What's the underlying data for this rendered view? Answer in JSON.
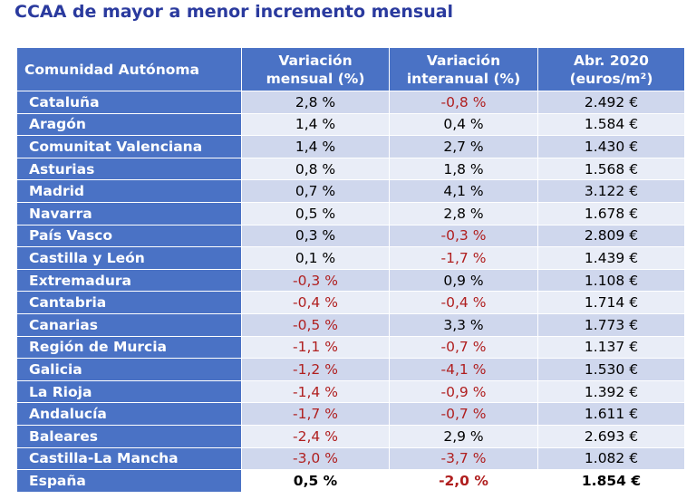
{
  "title": "CCAA de mayor a menor incremento mensual",
  "table": {
    "headers": {
      "region": "Comunidad Autónoma",
      "mensual_line1": "Variación",
      "mensual_line2": "mensual (%)",
      "interanual_line1": "Variación",
      "interanual_line2": "interanual (%)",
      "precio_line1": "Abr. 2020",
      "precio_line2": "(euros/m²)"
    },
    "rows": [
      {
        "region": "Cataluña",
        "mensual": "2,8 %",
        "interanual": "-0,8 %",
        "precio": "2.492 €"
      },
      {
        "region": "Aragón",
        "mensual": "1,4 %",
        "interanual": "0,4 %",
        "precio": "1.584 €"
      },
      {
        "region": "Comunitat Valenciana",
        "mensual": "1,4 %",
        "interanual": "2,7 %",
        "precio": "1.430 €"
      },
      {
        "region": "Asturias",
        "mensual": "0,8 %",
        "interanual": "1,8 %",
        "precio": "1.568 €"
      },
      {
        "region": "Madrid",
        "mensual": "0,7 %",
        "interanual": "4,1 %",
        "precio": "3.122 €"
      },
      {
        "region": "Navarra",
        "mensual": "0,5 %",
        "interanual": "2,8 %",
        "precio": "1.678 €"
      },
      {
        "region": "País Vasco",
        "mensual": "0,3 %",
        "interanual": "-0,3 %",
        "precio": "2.809 €"
      },
      {
        "region": "Castilla y León",
        "mensual": "0,1 %",
        "interanual": "-1,7 %",
        "precio": "1.439 €"
      },
      {
        "region": "Extremadura",
        "mensual": "-0,3 %",
        "interanual": "0,9 %",
        "precio": "1.108 €"
      },
      {
        "region": "Cantabria",
        "mensual": "-0,4 %",
        "interanual": "-0,4 %",
        "precio": "1.714 €"
      },
      {
        "region": "Canarias",
        "mensual": "-0,5 %",
        "interanual": "3,3 %",
        "precio": "1.773 €"
      },
      {
        "region": "Región de Murcia",
        "mensual": "-1,1 %",
        "interanual": "-0,7 %",
        "precio": "1.137 €"
      },
      {
        "region": "Galicia",
        "mensual": "-1,2 %",
        "interanual": "-4,1 %",
        "precio": "1.530 €"
      },
      {
        "region": "La Rioja",
        "mensual": "-1,4 %",
        "interanual": "-0,9 %",
        "precio": "1.392 €"
      },
      {
        "region": "Andalucía",
        "mensual": "-1,7 %",
        "interanual": "-0,7 %",
        "precio": "1.611 €"
      },
      {
        "region": "Baleares",
        "mensual": "-2,4 %",
        "interanual": "2,9 %",
        "precio": "2.693 €"
      },
      {
        "region": "Castilla-La Mancha",
        "mensual": "-3,0 %",
        "interanual": "-3,7 %",
        "precio": "1.082 €"
      }
    ],
    "total": {
      "region": "España",
      "mensual": "0,5 %",
      "interanual": "-2,0 %",
      "precio": "1.854 €"
    }
  },
  "colors": {
    "title": "#2a3a9e",
    "header_bg": "#4a72c5",
    "row_odd": "#cfd7ed",
    "row_even": "#e9edf7",
    "negative": "#b01f1f"
  }
}
